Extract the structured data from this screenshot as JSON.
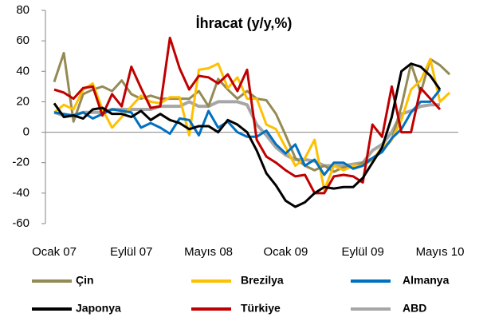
{
  "chart_data": {
    "type": "line",
    "title": "İhracat (y/y,%)",
    "categories": [
      "Ocak 07",
      null,
      null,
      null,
      null,
      null,
      null,
      null,
      "Eylül 07",
      null,
      null,
      null,
      null,
      null,
      null,
      null,
      "Mayıs 08",
      null,
      null,
      null,
      null,
      null,
      null,
      null,
      "Ocak 09",
      null,
      null,
      null,
      null,
      null,
      null,
      null,
      "Eylül 09",
      null,
      null,
      null,
      null,
      null,
      null,
      null,
      "Mayıs 10",
      null
    ],
    "ylim": [
      -60,
      80
    ],
    "yticks": [
      -60,
      -40,
      -20,
      0,
      20,
      40,
      60,
      80
    ],
    "series": [
      {
        "name": "Çin",
        "color": "#948a54",
        "values": [
          33,
          52,
          7,
          25,
          28,
          30,
          27,
          34,
          25,
          22,
          24,
          22,
          22,
          22,
          22,
          27,
          17,
          35,
          28,
          22,
          27,
          22,
          21,
          12,
          -2,
          -17,
          -22,
          -25,
          -22,
          -26,
          -23,
          -23,
          -20,
          -17,
          -12,
          -5,
          17,
          45,
          26,
          48,
          44,
          38
        ]
      },
      {
        "name": "Brezilya",
        "color": "#ffc000",
        "values": [
          13,
          18,
          15,
          28,
          32,
          15,
          3,
          10,
          17,
          24,
          20,
          19,
          23,
          23,
          -2,
          41,
          42,
          45,
          29,
          36,
          22,
          22,
          5,
          2,
          -10,
          -22,
          -17,
          -5,
          -38,
          -22,
          -25,
          -22,
          -22,
          -18,
          -10,
          -5,
          8,
          28,
          34,
          48,
          20,
          26
        ]
      },
      {
        "name": "Almanya",
        "color": "#0070c0",
        "values": [
          13,
          12,
          11,
          13,
          9,
          12,
          15,
          14,
          13,
          3,
          6,
          3,
          -1,
          9,
          8,
          -2,
          14,
          3,
          7,
          0,
          -3,
          -3,
          1,
          -8,
          -14,
          -8,
          -22,
          -18,
          -28,
          -20,
          -20,
          -24,
          -22,
          -17,
          -13,
          -4,
          2,
          13,
          20,
          20,
          28,
          null
        ]
      },
      {
        "name": "Japonya",
        "color": "#000000",
        "values": [
          19,
          10,
          11,
          9,
          15,
          16,
          12,
          12,
          10,
          14,
          8,
          12,
          8,
          6,
          2,
          4,
          4,
          0,
          8,
          5,
          0,
          -12,
          -27,
          -35,
          -45,
          -49,
          -46,
          -40,
          -36,
          -37,
          -36,
          -36,
          -30,
          -20,
          -10,
          10,
          40,
          45,
          43,
          37,
          28,
          null
        ]
      },
      {
        "name": "Türkiye",
        "color": "#c00000",
        "values": [
          28,
          26,
          22,
          29,
          30,
          11,
          25,
          17,
          43,
          29,
          16,
          17,
          62,
          42,
          28,
          37,
          36,
          32,
          38,
          27,
          41,
          -5,
          -16,
          -20,
          -25,
          -29,
          -28,
          -40,
          -40,
          -29,
          -28,
          -29,
          -33,
          5,
          -3,
          30,
          0,
          0,
          29,
          22,
          15,
          null
        ]
      },
      {
        "name": "ABD",
        "color": "#a6a6a6",
        "values": [
          13,
          11,
          11,
          13,
          13,
          13,
          15,
          15,
          15,
          15,
          15,
          17,
          17,
          17,
          20,
          17,
          17,
          20,
          20,
          20,
          18,
          5,
          -2,
          -10,
          -15,
          -18,
          -18,
          -19,
          -22,
          -22,
          -22,
          -21,
          -20,
          -12,
          -8,
          0,
          12,
          14,
          17,
          18,
          18,
          null
        ]
      }
    ]
  }
}
